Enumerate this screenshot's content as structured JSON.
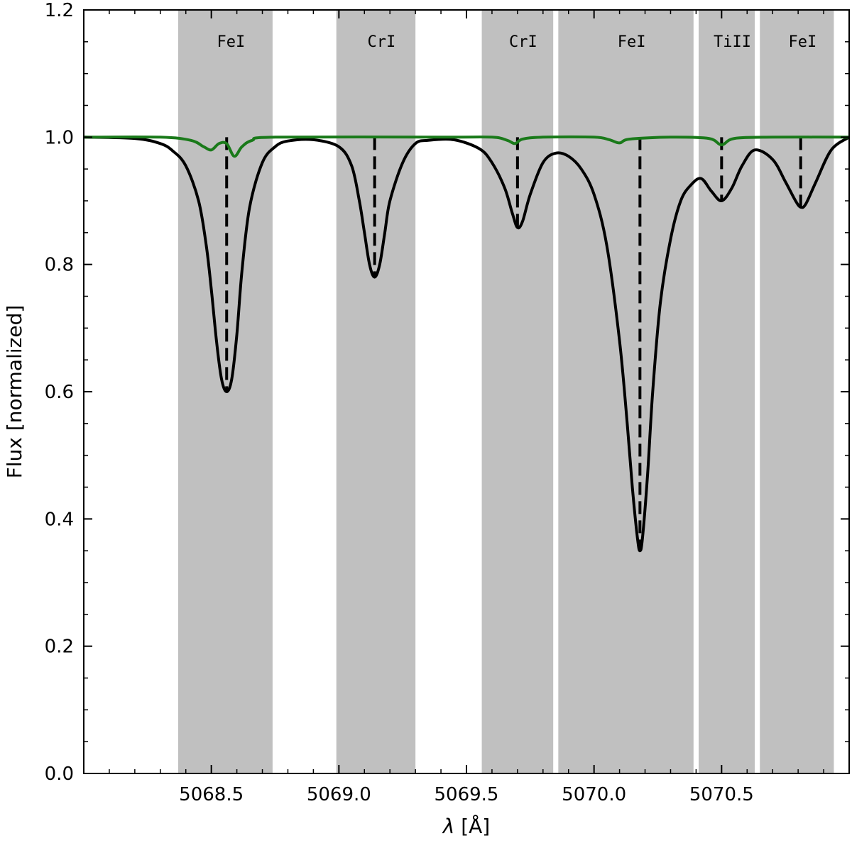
{
  "chart_data": {
    "type": "line",
    "xlabel_symbol": "λ",
    "xlabel_unit": " [Å]",
    "ylabel": "Flux [normalized]",
    "xlim": [
      5068.0,
      5071.0
    ],
    "ylim": [
      0.0,
      1.2
    ],
    "xticks": [
      5068.5,
      5069.0,
      5069.5,
      5070.0,
      5070.5
    ],
    "xtick_labels": [
      "5068.5",
      "5069.0",
      "5069.5",
      "5070.0",
      "5070.5"
    ],
    "yticks": [
      0.0,
      0.2,
      0.4,
      0.6,
      0.8,
      1.0,
      1.2
    ],
    "ytick_labels": [
      "0.0",
      "0.2",
      "0.4",
      "0.6",
      "0.8",
      "1.0",
      "1.2"
    ],
    "grid": false,
    "regions": [
      {
        "label": "FeI",
        "x0": 5068.37,
        "x1": 5068.74,
        "line": 5068.56,
        "depth": 0.6
      },
      {
        "label": "CrI",
        "x0": 5068.99,
        "x1": 5069.3,
        "line": 5069.14,
        "depth": 0.78
      },
      {
        "label": "CrI",
        "x0": 5069.56,
        "x1": 5069.84,
        "line": 5069.7,
        "depth": 0.858
      },
      {
        "label": "FeI",
        "x0": 5069.86,
        "x1": 5070.39,
        "line": 5070.18,
        "depth": 0.35
      },
      {
        "label": "TiII",
        "x0": 5070.41,
        "x1": 5070.63,
        "line": 5070.5,
        "depth": 0.9
      },
      {
        "label": "FeI",
        "x0": 5070.65,
        "x1": 5070.94,
        "line": 5070.81,
        "depth": 0.89
      }
    ],
    "series": [
      {
        "color": "#000000",
        "x": [
          5068.0,
          5068.2,
          5068.3,
          5068.35,
          5068.4,
          5068.45,
          5068.48,
          5068.5,
          5068.52,
          5068.54,
          5068.56,
          5068.58,
          5068.6,
          5068.62,
          5068.65,
          5068.7,
          5068.75,
          5068.8,
          5068.9,
          5069.0,
          5069.05,
          5069.08,
          5069.1,
          5069.12,
          5069.14,
          5069.16,
          5069.18,
          5069.2,
          5069.25,
          5069.3,
          5069.35,
          5069.45,
          5069.55,
          5069.6,
          5069.65,
          5069.68,
          5069.7,
          5069.72,
          5069.75,
          5069.8,
          5069.85,
          5069.9,
          5069.95,
          5070.0,
          5070.05,
          5070.1,
          5070.13,
          5070.15,
          5070.17,
          5070.18,
          5070.19,
          5070.21,
          5070.23,
          5070.26,
          5070.3,
          5070.34,
          5070.38,
          5070.42,
          5070.46,
          5070.5,
          5070.54,
          5070.58,
          5070.63,
          5070.7,
          5070.75,
          5070.79,
          5070.81,
          5070.83,
          5070.87,
          5070.93,
          5071.0
        ],
        "y": [
          1.0,
          0.998,
          0.99,
          0.978,
          0.955,
          0.9,
          0.83,
          0.76,
          0.68,
          0.62,
          0.6,
          0.62,
          0.69,
          0.79,
          0.89,
          0.96,
          0.985,
          0.994,
          0.996,
          0.985,
          0.955,
          0.9,
          0.85,
          0.8,
          0.78,
          0.8,
          0.85,
          0.9,
          0.96,
          0.99,
          0.995,
          0.996,
          0.982,
          0.96,
          0.92,
          0.88,
          0.858,
          0.868,
          0.91,
          0.96,
          0.975,
          0.97,
          0.95,
          0.91,
          0.83,
          0.68,
          0.55,
          0.45,
          0.37,
          0.35,
          0.37,
          0.47,
          0.6,
          0.74,
          0.84,
          0.9,
          0.925,
          0.935,
          0.915,
          0.9,
          0.92,
          0.955,
          0.98,
          0.965,
          0.93,
          0.9,
          0.89,
          0.895,
          0.93,
          0.98,
          1.0
        ]
      },
      {
        "color": "#1a7a1a",
        "x": [
          5068.0,
          5068.3,
          5068.42,
          5068.47,
          5068.5,
          5068.53,
          5068.56,
          5068.59,
          5068.62,
          5068.66,
          5068.75,
          5069.4,
          5069.6,
          5069.66,
          5069.69,
          5069.72,
          5069.8,
          5070.0,
          5070.06,
          5070.1,
          5070.14,
          5070.3,
          5070.45,
          5070.5,
          5070.55,
          5070.7,
          5071.0
        ],
        "y": [
          1.0,
          1.0,
          0.995,
          0.985,
          0.98,
          0.99,
          0.99,
          0.97,
          0.985,
          0.995,
          1.0,
          1.0,
          1.0,
          0.995,
          0.99,
          0.997,
          1.0,
          1.0,
          0.996,
          0.991,
          0.997,
          1.0,
          0.998,
          0.988,
          0.998,
          1.0,
          1.0
        ]
      }
    ]
  }
}
